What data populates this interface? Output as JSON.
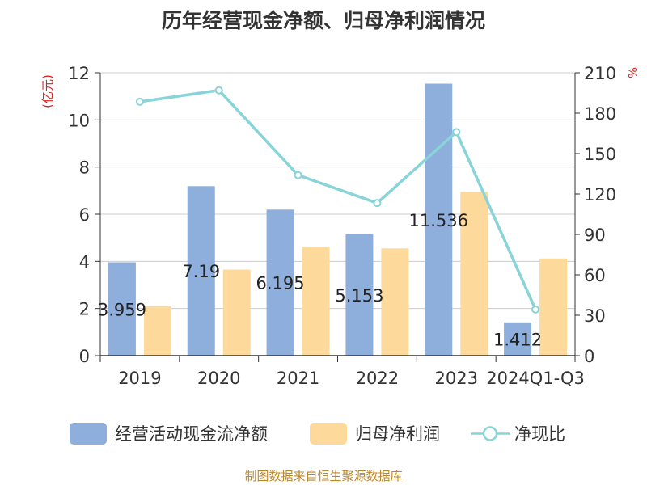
{
  "chart_data": {
    "type": "bar",
    "title": "历年经营现金净额、归母净利润情况",
    "categories": [
      "2019",
      "2020",
      "2021",
      "2022",
      "2023",
      "2024Q1-Q3"
    ],
    "series": [
      {
        "name": "经营活动现金流净额",
        "type": "bar",
        "axis": "left",
        "color": "#8eaedb",
        "values": [
          3.959,
          7.19,
          6.195,
          5.153,
          11.536,
          1.412
        ],
        "labels": [
          "3.959",
          "7.19",
          "6.195",
          "5.153",
          "11.536",
          "1.412"
        ]
      },
      {
        "name": "归母净利润",
        "type": "bar",
        "axis": "left",
        "color": "#fdd99b",
        "values": [
          2.1,
          3.65,
          4.62,
          4.55,
          6.95,
          4.12
        ]
      },
      {
        "name": "净现比",
        "type": "line",
        "axis": "right",
        "color": "#88d4d8",
        "values": [
          188.5,
          197.0,
          134.0,
          113.3,
          166.0,
          34.3
        ]
      }
    ],
    "y_left": {
      "label": "(亿元)",
      "min": 0,
      "max": 12,
      "ticks": [
        0,
        2,
        4,
        6,
        8,
        10,
        12
      ]
    },
    "y_right": {
      "label": "%",
      "min": 0,
      "max": 210,
      "ticks": [
        0,
        30,
        60,
        90,
        120,
        150,
        180,
        210
      ]
    },
    "grid": true,
    "legend_position": "bottom"
  },
  "source_note": "制图数据来自恒生聚源数据库"
}
